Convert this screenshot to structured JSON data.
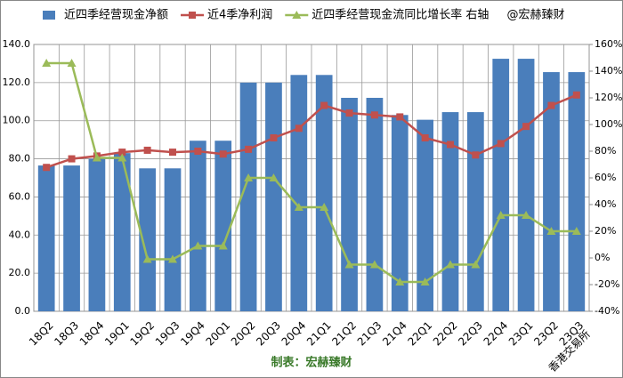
{
  "chart_data": {
    "type": "bar-line",
    "categories": [
      "18Q2",
      "18Q3",
      "18Q4",
      "19Q1",
      "19Q2",
      "19Q3",
      "19Q4",
      "20Q1",
      "20Q2",
      "20Q3",
      "20Q4",
      "21Q1",
      "21Q2",
      "21Q3",
      "21Q4",
      "22Q1",
      "22Q2",
      "22Q3",
      "22Q4",
      "23Q1",
      "23Q2",
      "23Q3"
    ],
    "series": [
      {
        "name": "近四季经营现金净额",
        "type": "bar",
        "color": "#4a7ebb",
        "values": [
          76.5,
          76.5,
          80,
          83,
          75,
          75,
          89.5,
          89.5,
          120,
          120,
          124,
          124,
          112,
          112,
          103,
          100.5,
          104.5,
          104.5,
          132.5,
          132.5,
          125.5,
          125.5
        ]
      },
      {
        "name": "近4季净利润",
        "type": "line",
        "color": "#c0504d",
        "values": [
          75.5,
          80,
          81.5,
          83.5,
          84.5,
          83.5,
          84,
          82.5,
          85,
          91,
          96,
          108,
          104,
          103,
          102,
          91,
          87.5,
          82,
          88,
          97,
          108,
          113.5
        ]
      },
      {
        "name": "近四季经营现金流同比增长率 右轴",
        "type": "line",
        "axis": "y2",
        "color": "#9bbb59",
        "values": [
          146,
          146,
          75,
          75,
          -1,
          -1,
          9,
          9,
          60,
          60,
          38,
          38,
          -5,
          -5,
          -18,
          -18,
          -5,
          -5,
          32,
          32,
          20,
          20
        ]
      }
    ],
    "legend_note": "@宏赫臻财",
    "footer": "制表：宏赫臻财",
    "watermark": "香港交易所",
    "ylim": [
      0,
      140
    ],
    "yticks": [
      {
        "value": 0,
        "label": "0.0"
      },
      {
        "value": 20,
        "label": "20.0"
      },
      {
        "value": 40,
        "label": "40.0"
      },
      {
        "value": 60,
        "label": "60.0"
      },
      {
        "value": 80,
        "label": "80.0"
      },
      {
        "value": 100,
        "label": "100.0"
      },
      {
        "value": 120,
        "label": "120.0"
      },
      {
        "value": 140,
        "label": "140.0"
      }
    ],
    "y2lim": [
      -40,
      160
    ],
    "y2ticks": [
      {
        "value": -40,
        "label": "-40%"
      },
      {
        "value": -20,
        "label": "-20%"
      },
      {
        "value": 0,
        "label": "0%"
      },
      {
        "value": 20,
        "label": "20%"
      },
      {
        "value": 40,
        "label": "40%"
      },
      {
        "value": 60,
        "label": "60%"
      },
      {
        "value": 80,
        "label": "80%"
      },
      {
        "value": 100,
        "label": "100%"
      },
      {
        "value": 120,
        "label": "120%"
      },
      {
        "value": 140,
        "label": "140%"
      },
      {
        "value": 160,
        "label": "160%"
      }
    ],
    "grid": true
  }
}
